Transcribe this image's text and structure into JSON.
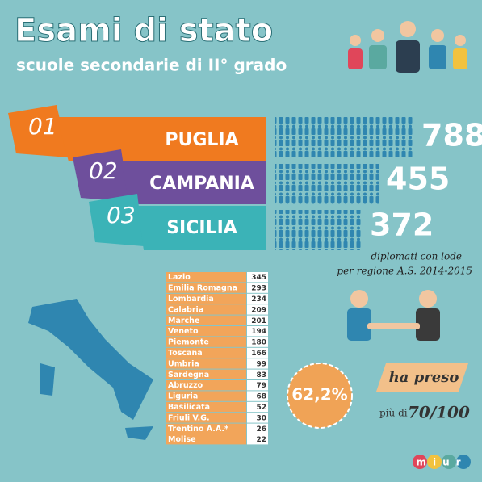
{
  "header": {
    "title": "Esami di stato",
    "subtitle": "scuole secondarie di II° grado"
  },
  "podium": [
    {
      "rank": "01",
      "region": "PUGLIA",
      "value": 788
    },
    {
      "rank": "02",
      "region": "CAMPANIA",
      "value": 455
    },
    {
      "rank": "03",
      "region": "SICILIA",
      "value": 372
    }
  ],
  "caption": {
    "line1": "diplomati con lode",
    "line2": "per regione A.S. 2014-2015"
  },
  "table": {
    "rows": [
      [
        "Lazio",
        345
      ],
      [
        "Emilia Romagna",
        293
      ],
      [
        "Lombardia",
        234
      ],
      [
        "Calabria",
        209
      ],
      [
        "Marche",
        201
      ],
      [
        "Veneto",
        194
      ],
      [
        "Piemonte",
        180
      ],
      [
        "Toscana",
        166
      ],
      [
        "Umbria",
        99
      ],
      [
        "Sardegna",
        83
      ],
      [
        "Abruzzo",
        79
      ],
      [
        "Liguria",
        68
      ],
      [
        "Basilicata",
        52
      ],
      [
        "Friuli V.G.",
        30
      ],
      [
        "Trentino A.A.*",
        26
      ],
      [
        "Molise",
        22
      ]
    ]
  },
  "badge": {
    "percent": "62,2%"
  },
  "grade": {
    "line1": "ha preso",
    "prefix": "più di",
    "score": "70/100"
  },
  "logo": "miur"
}
